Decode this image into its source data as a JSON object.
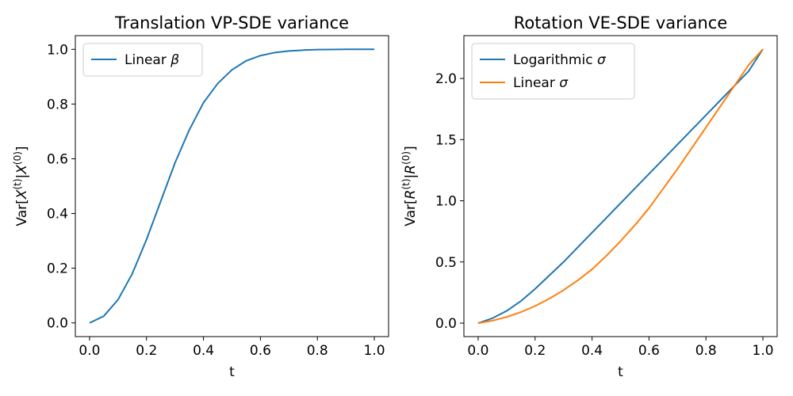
{
  "chart_data": [
    {
      "type": "line",
      "title": "Translation VP-SDE variance",
      "xlabel": "t",
      "ylabel": {
        "base": "Var[",
        "v1": "X",
        "sup1": "(t)",
        "mid": "|",
        "v2": "X",
        "sup2": "(0)",
        "end": "]"
      },
      "xlim": [
        -0.05,
        1.05
      ],
      "ylim": [
        -0.05,
        1.05
      ],
      "xticks": [
        0.0,
        0.2,
        0.4,
        0.6,
        0.8,
        1.0
      ],
      "xtick_labels": [
        "0.0",
        "0.2",
        "0.4",
        "0.6",
        "0.8",
        "1.0"
      ],
      "yticks": [
        0.0,
        0.2,
        0.4,
        0.6,
        0.8,
        1.0
      ],
      "ytick_labels": [
        "0.0",
        "0.2",
        "0.4",
        "0.6",
        "0.8",
        "1.0"
      ],
      "legend_position": "upper-left",
      "grid": false,
      "series": [
        {
          "name": {
            "text": "Linear ",
            "symbol": "β"
          },
          "color": "#1f77b4",
          "x": [
            0.0,
            0.05,
            0.1,
            0.15,
            0.2,
            0.25,
            0.3,
            0.35,
            0.4,
            0.45,
            0.5,
            0.55,
            0.6,
            0.65,
            0.7,
            0.75,
            0.8,
            0.85,
            0.9,
            0.95,
            1.0
          ],
          "y": [
            0.0,
            0.025,
            0.085,
            0.18,
            0.305,
            0.445,
            0.585,
            0.705,
            0.805,
            0.875,
            0.925,
            0.958,
            0.977,
            0.988,
            0.994,
            0.997,
            0.999,
            0.9995,
            1.0,
            1.0,
            1.0
          ]
        }
      ]
    },
    {
      "type": "line",
      "title": "Rotation VE-SDE variance",
      "xlabel": "t",
      "ylabel": {
        "base": "Var[",
        "v1": "R",
        "sup1": "(t)",
        "mid": "|",
        "v2": "R",
        "sup2": "(0)",
        "end": "]"
      },
      "xlim": [
        -0.05,
        1.05
      ],
      "ylim": [
        -0.11,
        2.35
      ],
      "xticks": [
        0.0,
        0.2,
        0.4,
        0.6,
        0.8,
        1.0
      ],
      "xtick_labels": [
        "0.0",
        "0.2",
        "0.4",
        "0.6",
        "0.8",
        "1.0"
      ],
      "yticks": [
        0.0,
        0.5,
        1.0,
        1.5,
        2.0
      ],
      "ytick_labels": [
        "0.0",
        "0.5",
        "1.0",
        "1.5",
        "2.0"
      ],
      "legend_position": "upper-left",
      "grid": false,
      "series": [
        {
          "name": {
            "text": "Logarithmic ",
            "symbol": "σ"
          },
          "color": "#1f77b4",
          "x": [
            0.0,
            0.05,
            0.1,
            0.15,
            0.2,
            0.25,
            0.3,
            0.35,
            0.4,
            0.45,
            0.5,
            0.55,
            0.6,
            0.65,
            0.7,
            0.75,
            0.8,
            0.85,
            0.9,
            0.95,
            1.0
          ],
          "y": [
            0.0,
            0.04,
            0.1,
            0.18,
            0.28,
            0.39,
            0.5,
            0.62,
            0.74,
            0.86,
            0.98,
            1.1,
            1.22,
            1.34,
            1.46,
            1.58,
            1.7,
            1.82,
            1.94,
            2.06,
            2.24
          ]
        },
        {
          "name": {
            "text": "Linear ",
            "symbol": "σ"
          },
          "color": "#ff7f0e",
          "x": [
            0.0,
            0.05,
            0.1,
            0.15,
            0.2,
            0.25,
            0.3,
            0.35,
            0.4,
            0.45,
            0.5,
            0.55,
            0.6,
            0.65,
            0.7,
            0.75,
            0.8,
            0.85,
            0.9,
            0.95,
            1.0
          ],
          "y": [
            0.0,
            0.02,
            0.05,
            0.09,
            0.14,
            0.2,
            0.27,
            0.35,
            0.44,
            0.55,
            0.67,
            0.8,
            0.94,
            1.1,
            1.26,
            1.43,
            1.6,
            1.77,
            1.94,
            2.11,
            2.24
          ]
        }
      ]
    }
  ]
}
